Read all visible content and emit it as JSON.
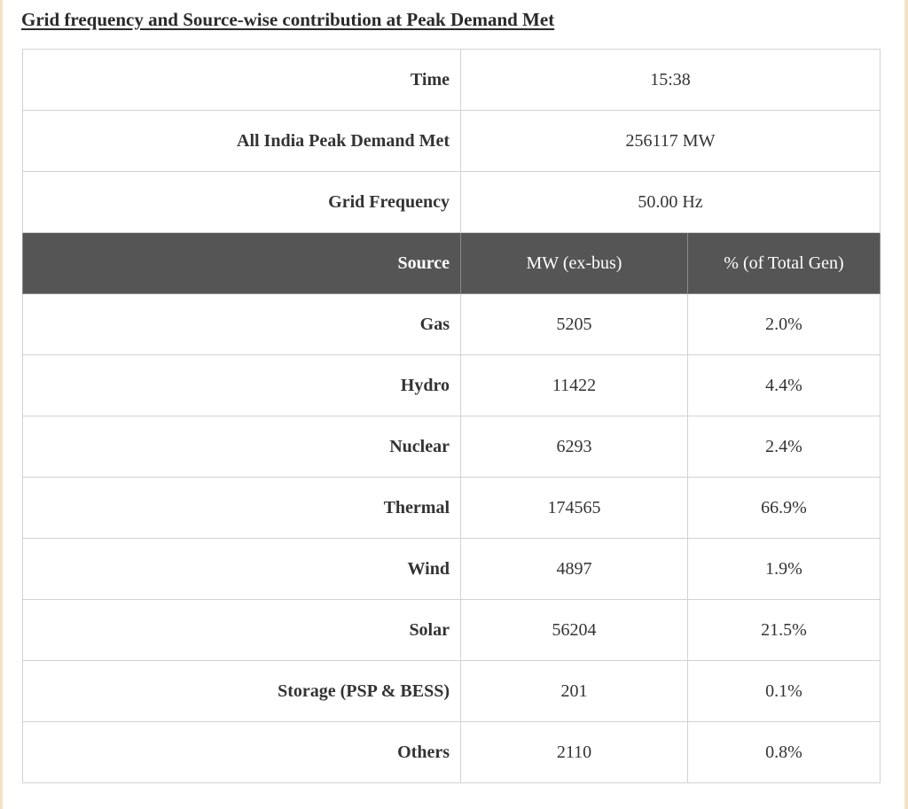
{
  "title": "Grid frequency and Source-wise contribution at Peak Demand Met",
  "summary": [
    {
      "label": "Time",
      "value": "15:38"
    },
    {
      "label": "All India Peak Demand Met",
      "value": "256117 MW"
    },
    {
      "label": "Grid Frequency",
      "value": "50.00 Hz"
    }
  ],
  "table": {
    "headers": [
      "Source",
      "MW (ex-bus)",
      "% (of Total Gen)"
    ],
    "rows": [
      {
        "source": "Gas",
        "mw": "5205",
        "percent": "2.0%"
      },
      {
        "source": "Hydro",
        "mw": "11422",
        "percent": "4.4%"
      },
      {
        "source": "Nuclear",
        "mw": "6293",
        "percent": "2.4%"
      },
      {
        "source": "Thermal",
        "mw": "174565",
        "percent": "66.9%"
      },
      {
        "source": "Wind",
        "mw": "4897",
        "percent": "1.9%"
      },
      {
        "source": "Solar",
        "mw": "56204",
        "percent": "21.5%"
      },
      {
        "source": "Storage (PSP & BESS)",
        "mw": "201",
        "percent": "0.1%"
      },
      {
        "source": "Others",
        "mw": "2110",
        "percent": "0.8%"
      }
    ]
  }
}
